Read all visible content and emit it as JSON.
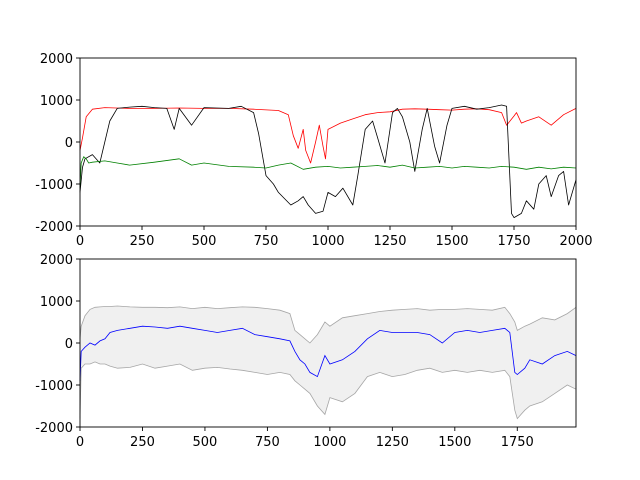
{
  "chart_data": [
    {
      "type": "line",
      "title": "",
      "xlabel": "",
      "ylabel": "",
      "xlim": [
        0,
        2000
      ],
      "ylim": [
        -2000,
        2000
      ],
      "xticks": [
        0,
        250,
        500,
        750,
        1000,
        1250,
        1500,
        1750,
        2000
      ],
      "yticks": [
        -2000,
        -1000,
        0,
        1000,
        2000
      ],
      "grid": false,
      "legend": "none",
      "series": [
        {
          "color": "#ff0000",
          "x": [
            0,
            10,
            25,
            50,
            100,
            200,
            300,
            400,
            500,
            600,
            700,
            800,
            840,
            860,
            880,
            900,
            910,
            930,
            950,
            965,
            980,
            990,
            1000,
            1050,
            1100,
            1150,
            1200,
            1250,
            1300,
            1350,
            1400,
            1450,
            1500,
            1550,
            1600,
            1650,
            1700,
            1720,
            1750,
            1760,
            1780,
            1800,
            1850,
            1900,
            1950,
            2000
          ],
          "values": [
            -200,
            100,
            600,
            780,
            820,
            800,
            800,
            810,
            800,
            800,
            780,
            750,
            650,
            150,
            -150,
            300,
            -200,
            -500,
            0,
            400,
            -100,
            -400,
            300,
            450,
            550,
            650,
            700,
            720,
            780,
            790,
            780,
            770,
            760,
            780,
            790,
            770,
            700,
            400,
            620,
            700,
            450,
            500,
            600,
            400,
            650,
            800
          ]
        },
        {
          "color": "#000000",
          "x": [
            0,
            10,
            20,
            50,
            80,
            100,
            120,
            150,
            200,
            250,
            300,
            350,
            380,
            400,
            450,
            500,
            550,
            600,
            650,
            700,
            720,
            750,
            780,
            800,
            850,
            880,
            900,
            920,
            950,
            980,
            1000,
            1030,
            1060,
            1100,
            1120,
            1150,
            1180,
            1200,
            1230,
            1260,
            1280,
            1300,
            1330,
            1350,
            1380,
            1400,
            1430,
            1450,
            1480,
            1500,
            1550,
            1600,
            1650,
            1700,
            1720,
            1740,
            1750,
            1780,
            1800,
            1830,
            1850,
            1880,
            1900,
            1930,
            1950,
            1970,
            2000
          ],
          "values": [
            -1200,
            -600,
            -400,
            -300,
            -500,
            0,
            500,
            800,
            830,
            850,
            820,
            800,
            300,
            800,
            400,
            820,
            810,
            800,
            850,
            700,
            200,
            -800,
            -1000,
            -1200,
            -1500,
            -1400,
            -1300,
            -1500,
            -1700,
            -1650,
            -1200,
            -1300,
            -1100,
            -1500,
            -800,
            300,
            500,
            100,
            -500,
            700,
            800,
            600,
            0,
            -700,
            300,
            800,
            -100,
            -500,
            400,
            800,
            850,
            780,
            820,
            880,
            850,
            -1700,
            -1800,
            -1700,
            -1400,
            -1600,
            -1000,
            -800,
            -1300,
            -800,
            -700,
            -1500,
            -900
          ]
        },
        {
          "color": "#008000",
          "x": [
            0,
            5,
            15,
            25,
            35,
            50,
            100,
            150,
            200,
            300,
            400,
            450,
            500,
            600,
            700,
            750,
            800,
            850,
            900,
            950,
            1000,
            1050,
            1100,
            1150,
            1200,
            1250,
            1300,
            1350,
            1400,
            1450,
            1500,
            1550,
            1600,
            1650,
            1700,
            1750,
            1800,
            1850,
            1900,
            1950,
            2000
          ],
          "values": [
            -1100,
            -500,
            -350,
            -400,
            -500,
            -480,
            -450,
            -500,
            -550,
            -480,
            -400,
            -550,
            -500,
            -580,
            -600,
            -620,
            -550,
            -500,
            -650,
            -600,
            -580,
            -620,
            -600,
            -580,
            -560,
            -600,
            -550,
            -620,
            -600,
            -580,
            -620,
            -580,
            -600,
            -620,
            -580,
            -600,
            -650,
            -600,
            -640,
            -600,
            -620
          ]
        }
      ]
    },
    {
      "type": "area",
      "title": "",
      "xlabel": "",
      "ylabel": "",
      "xlim": [
        0,
        1985
      ],
      "ylim": [
        -2000,
        2000
      ],
      "xticks": [
        0,
        250,
        500,
        750,
        1000,
        1250,
        1500,
        1750
      ],
      "yticks": [
        -2000,
        -1000,
        0,
        1000,
        2000
      ],
      "grid": false,
      "legend": "none",
      "fill_color": "#f0f0f0",
      "band_color": "#a6a6a6",
      "mean_color": "#0000ff",
      "x": [
        0,
        5,
        20,
        40,
        60,
        80,
        100,
        120,
        150,
        200,
        250,
        300,
        350,
        400,
        450,
        500,
        550,
        600,
        650,
        700,
        750,
        800,
        840,
        860,
        880,
        900,
        920,
        950,
        980,
        1000,
        1050,
        1100,
        1150,
        1200,
        1250,
        1300,
        1350,
        1400,
        1450,
        1500,
        1550,
        1600,
        1650,
        1700,
        1720,
        1740,
        1750,
        1780,
        1800,
        1850,
        1900,
        1950,
        1985
      ],
      "upper": [
        100,
        400,
        650,
        800,
        850,
        860,
        870,
        870,
        880,
        860,
        850,
        850,
        840,
        860,
        820,
        850,
        820,
        840,
        860,
        850,
        820,
        780,
        700,
        300,
        200,
        100,
        0,
        200,
        500,
        400,
        600,
        650,
        700,
        750,
        780,
        800,
        820,
        780,
        800,
        800,
        820,
        800,
        780,
        850,
        700,
        500,
        300,
        400,
        450,
        600,
        550,
        700,
        850
      ],
      "mean": [
        -900,
        -200,
        -100,
        0,
        -50,
        50,
        100,
        250,
        300,
        350,
        400,
        380,
        350,
        400,
        350,
        300,
        250,
        300,
        350,
        200,
        150,
        100,
        50,
        -200,
        -400,
        -500,
        -700,
        -800,
        -300,
        -500,
        -400,
        -200,
        100,
        300,
        250,
        250,
        250,
        200,
        0,
        250,
        300,
        250,
        300,
        350,
        250,
        -700,
        -750,
        -600,
        -400,
        -500,
        -300,
        -200,
        -300
      ],
      "lower": [
        -1800,
        -600,
        -500,
        -500,
        -450,
        -500,
        -500,
        -550,
        -600,
        -580,
        -500,
        -600,
        -550,
        -500,
        -650,
        -600,
        -580,
        -620,
        -650,
        -700,
        -750,
        -700,
        -750,
        -900,
        -1000,
        -1100,
        -1200,
        -1500,
        -1700,
        -1300,
        -1400,
        -1200,
        -800,
        -700,
        -800,
        -750,
        -650,
        -600,
        -700,
        -650,
        -700,
        -650,
        -700,
        -650,
        -800,
        -1600,
        -1800,
        -1600,
        -1500,
        -1400,
        -1200,
        -1000,
        -1100
      ]
    }
  ]
}
